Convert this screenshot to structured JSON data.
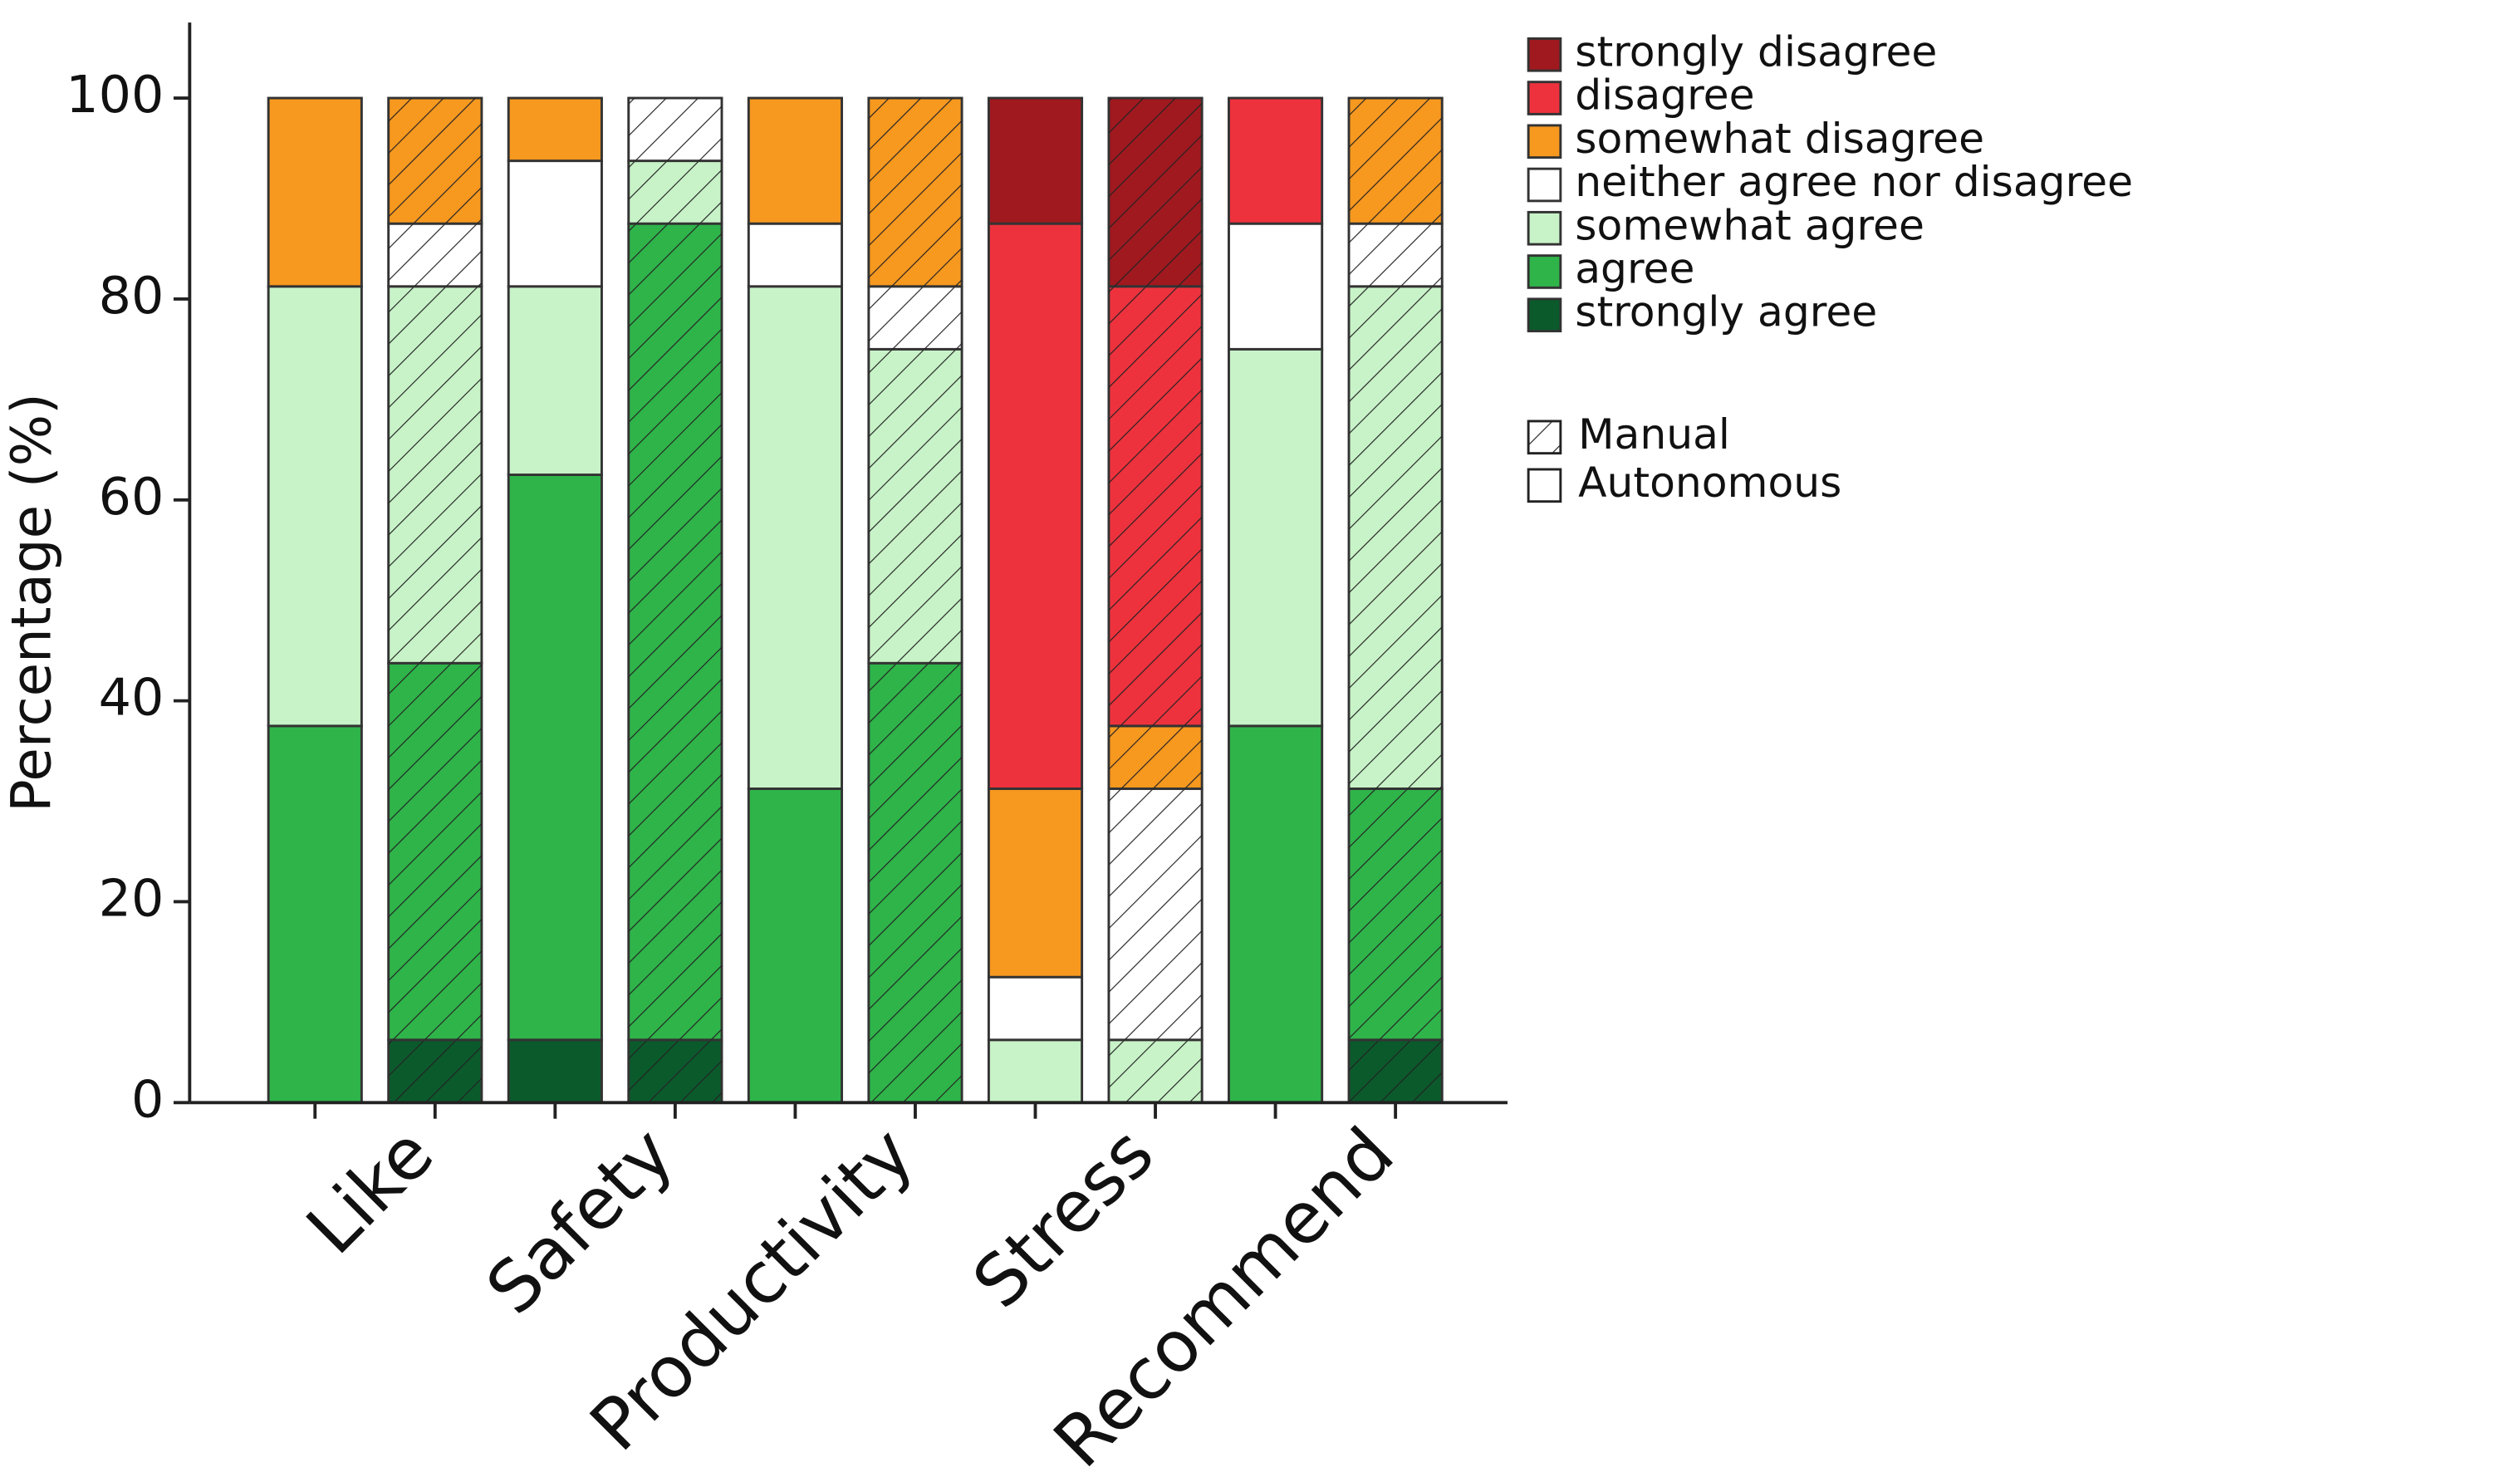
{
  "chart_data": {
    "type": "stacked_bar",
    "y_label": "Percentage (%)",
    "categories": [
      "Like",
      "Safety",
      "Productivity",
      "Stress",
      "Recommend"
    ],
    "conditions": [
      {
        "name": "Manual",
        "hatch": true
      },
      {
        "name": "Autonomous",
        "hatch": false
      }
    ],
    "series": [
      {
        "name": "strongly disagree",
        "color": "#a0191f",
        "values": [
          [
            0,
            0
          ],
          [
            0,
            0
          ],
          [
            0,
            0
          ],
          [
            18.75,
            12.5
          ],
          [
            0,
            0
          ]
        ]
      },
      {
        "name": "disagree",
        "color": "#ee323d",
        "values": [
          [
            0,
            0
          ],
          [
            0,
            0
          ],
          [
            0,
            0
          ],
          [
            43.75,
            56.25
          ],
          [
            0,
            12.5
          ]
        ]
      },
      {
        "name": "somewhat disagree",
        "color": "#f7981f",
        "values": [
          [
            12.5,
            18.75
          ],
          [
            0,
            6.25
          ],
          [
            18.75,
            12.5
          ],
          [
            6.25,
            18.75
          ],
          [
            12.5,
            0
          ]
        ]
      },
      {
        "name": "neither agree nor disagree",
        "color": "#ffffff",
        "values": [
          [
            6.25,
            0
          ],
          [
            6.25,
            12.5
          ],
          [
            6.25,
            6.25
          ],
          [
            25,
            6.25
          ],
          [
            6.25,
            12.5
          ]
        ]
      },
      {
        "name": "somewhat agree",
        "color": "#c8f3c8",
        "values": [
          [
            37.5,
            43.75
          ],
          [
            6.25,
            18.75
          ],
          [
            31.25,
            50
          ],
          [
            6.25,
            6.25
          ],
          [
            50,
            37.5
          ]
        ]
      },
      {
        "name": "agree",
        "color": "#2fb44a",
        "values": [
          [
            37.5,
            37.5
          ],
          [
            81.25,
            56.25
          ],
          [
            43.75,
            31.25
          ],
          [
            0,
            0
          ],
          [
            25,
            37.5
          ]
        ]
      },
      {
        "name": "strongly agree",
        "color": "#0b5a2c",
        "values": [
          [
            6.25,
            0
          ],
          [
            6.25,
            6.25
          ],
          [
            0,
            0
          ],
          [
            0,
            0
          ],
          [
            6.25,
            0
          ]
        ]
      }
    ],
    "ylim": [
      0,
      100
    ],
    "yticks": [
      0,
      20,
      40,
      60,
      80,
      100
    ]
  }
}
